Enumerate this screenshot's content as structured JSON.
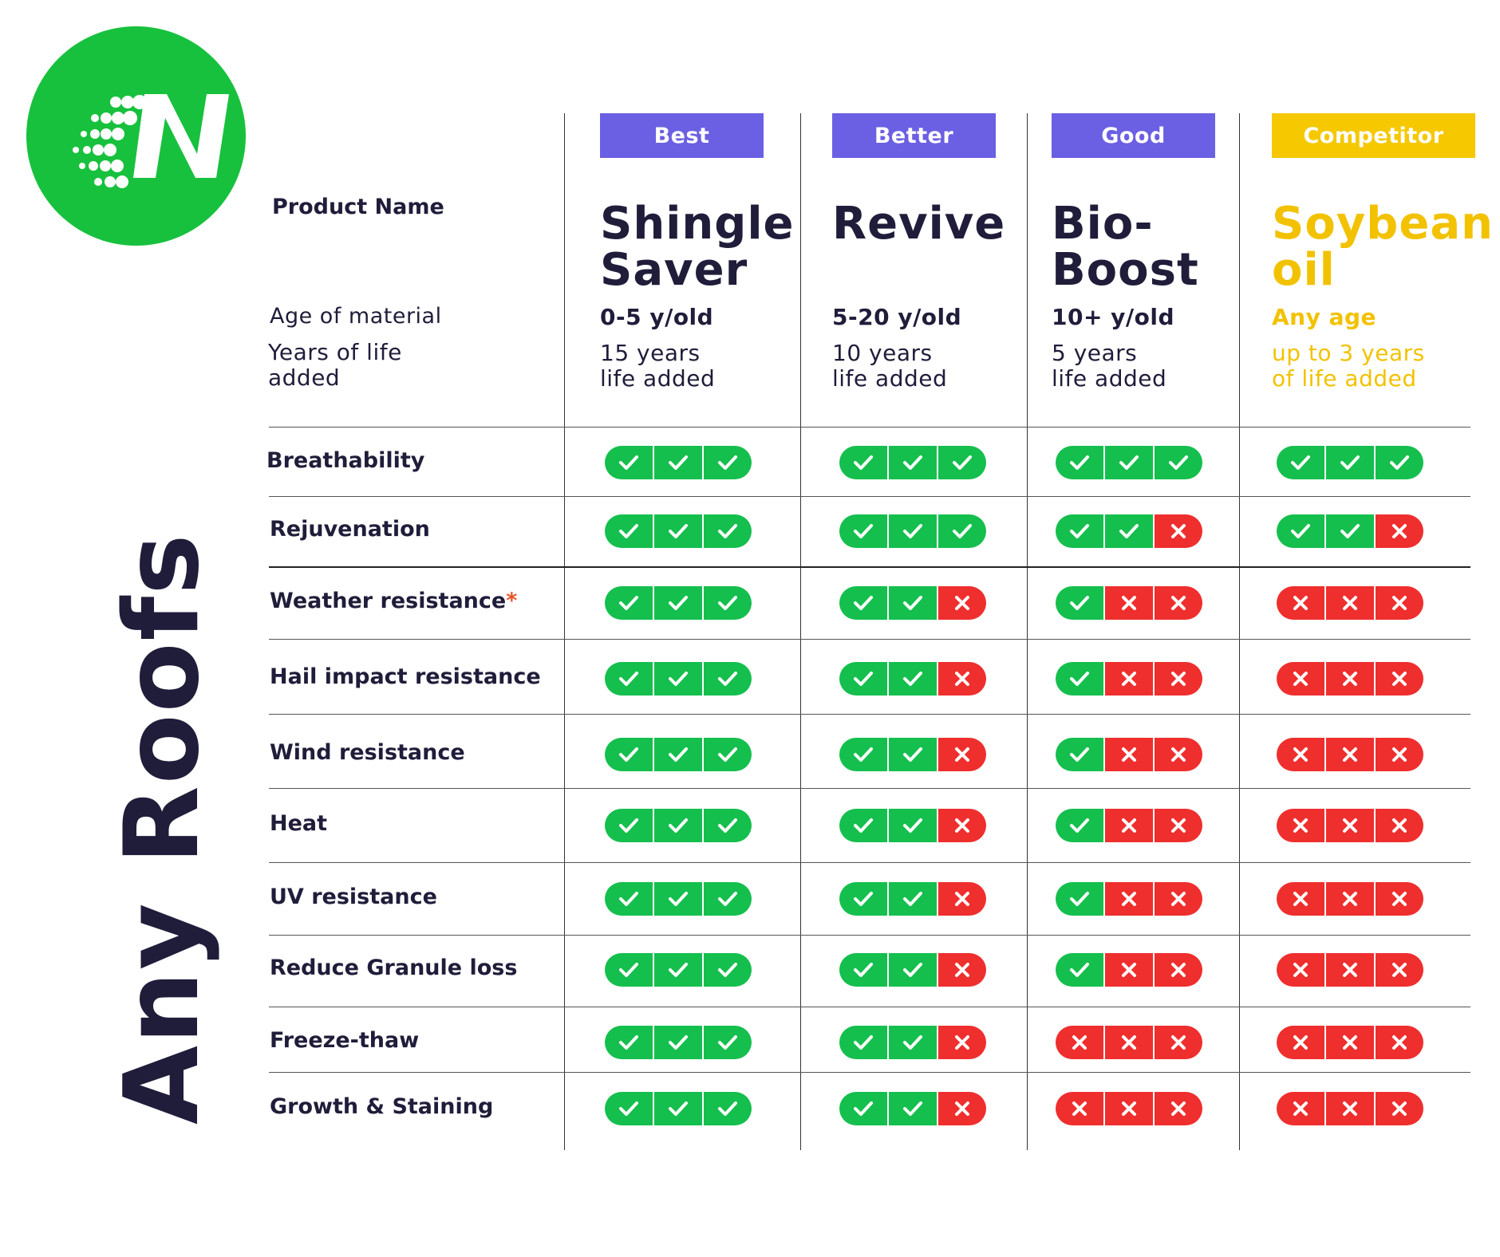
{
  "brand": {
    "logo_letter": "N",
    "color": "#17c13d"
  },
  "side_title": "Any Roofs",
  "header_labels": {
    "product_name": "Product Name",
    "age_of_material": "Age of material",
    "years_of_life_added": "Years of life\nadded"
  },
  "columns": [
    {
      "tier": "Best",
      "tier_color": "#6b5fe3",
      "name": "Shingle\nSaver",
      "age": "0-5 y/old",
      "life": "15 years\nlife added",
      "text_color": "#1f1d3a"
    },
    {
      "tier": "Better",
      "tier_color": "#6b5fe3",
      "name": "Revive",
      "age": "5-20 y/old",
      "life": "10 years\nlife added",
      "text_color": "#1f1d3a"
    },
    {
      "tier": "Good",
      "tier_color": "#6b5fe3",
      "name": "Bio-\nBoost",
      "age": "10+ y/old",
      "life": "5 years\nlife added",
      "text_color": "#1f1d3a"
    },
    {
      "tier": "Competitor",
      "tier_color": "#f5c800",
      "name": "Soybean\noil",
      "age": "Any age",
      "life": "up to 3 years\nof life added",
      "text_color": "#f2c200"
    }
  ],
  "rows": [
    {
      "label": "Breathability",
      "asterisk": "",
      "ratings": [
        [
          1,
          1,
          1
        ],
        [
          1,
          1,
          1
        ],
        [
          1,
          1,
          1
        ],
        [
          1,
          1,
          1
        ]
      ]
    },
    {
      "label": "Rejuvenation",
      "asterisk": "",
      "ratings": [
        [
          1,
          1,
          1
        ],
        [
          1,
          1,
          1
        ],
        [
          1,
          1,
          0
        ],
        [
          1,
          1,
          0
        ]
      ]
    },
    {
      "label": "Weather resistance",
      "asterisk": "*",
      "ratings": [
        [
          1,
          1,
          1
        ],
        [
          1,
          1,
          0
        ],
        [
          1,
          0,
          0
        ],
        [
          0,
          0,
          0
        ]
      ]
    },
    {
      "label": "Hail impact resistance",
      "asterisk": "",
      "ratings": [
        [
          1,
          1,
          1
        ],
        [
          1,
          1,
          0
        ],
        [
          1,
          0,
          0
        ],
        [
          0,
          0,
          0
        ]
      ]
    },
    {
      "label": "Wind resistance",
      "asterisk": "",
      "ratings": [
        [
          1,
          1,
          1
        ],
        [
          1,
          1,
          0
        ],
        [
          1,
          0,
          0
        ],
        [
          0,
          0,
          0
        ]
      ]
    },
    {
      "label": "Heat",
      "asterisk": "",
      "ratings": [
        [
          1,
          1,
          1
        ],
        [
          1,
          1,
          0
        ],
        [
          1,
          0,
          0
        ],
        [
          0,
          0,
          0
        ]
      ]
    },
    {
      "label": "UV resistance",
      "asterisk": "",
      "ratings": [
        [
          1,
          1,
          1
        ],
        [
          1,
          1,
          0
        ],
        [
          1,
          0,
          0
        ],
        [
          0,
          0,
          0
        ]
      ]
    },
    {
      "label": "Reduce Granule loss",
      "asterisk": "",
      "ratings": [
        [
          1,
          1,
          1
        ],
        [
          1,
          1,
          0
        ],
        [
          1,
          0,
          0
        ],
        [
          0,
          0,
          0
        ]
      ]
    },
    {
      "label": "Freeze-thaw",
      "asterisk": "",
      "ratings": [
        [
          1,
          1,
          1
        ],
        [
          1,
          1,
          0
        ],
        [
          0,
          0,
          0
        ],
        [
          0,
          0,
          0
        ]
      ]
    },
    {
      "label": "Growth & Staining",
      "asterisk": "",
      "ratings": [
        [
          1,
          1,
          1
        ],
        [
          1,
          1,
          0
        ],
        [
          0,
          0,
          0
        ],
        [
          0,
          0,
          0
        ]
      ]
    }
  ],
  "icons": {
    "yes": "check-icon",
    "no": "x-icon"
  },
  "colors": {
    "yes": "#14bf4d",
    "no": "#ef2e2e",
    "text": "#1f1d3a"
  }
}
